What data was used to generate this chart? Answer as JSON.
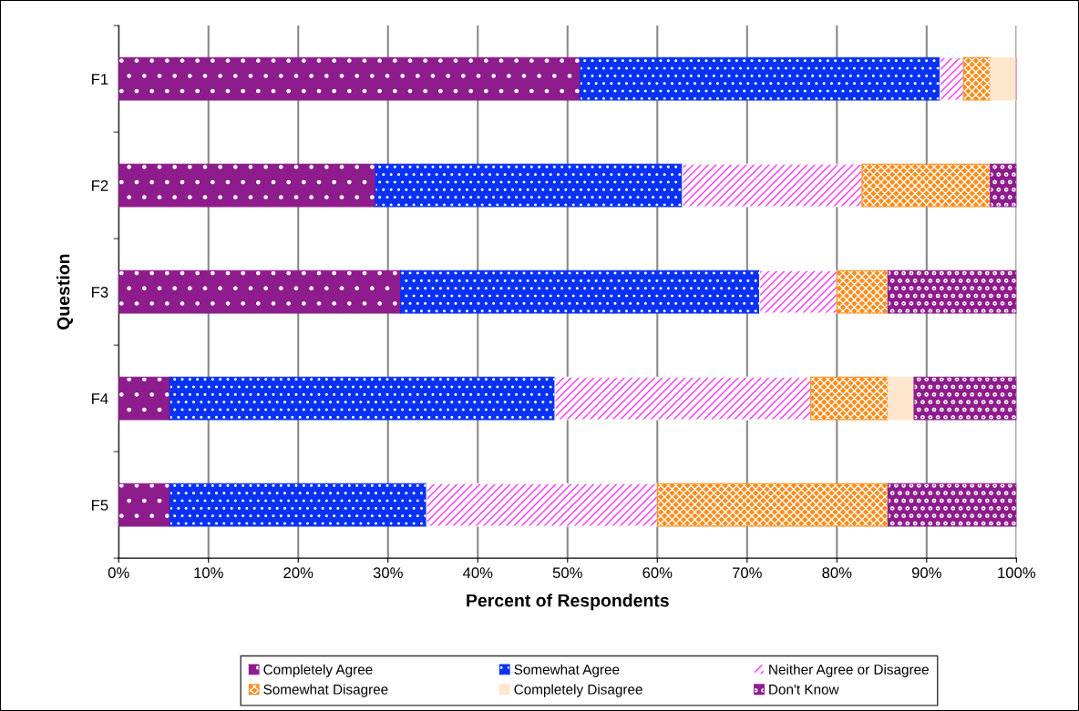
{
  "chart_data": {
    "type": "bar",
    "orientation": "horizontal",
    "stacked": true,
    "xlabel": "Percent of Respondents",
    "ylabel": "Question",
    "categories": [
      "F1",
      "F2",
      "F3",
      "F4",
      "F5"
    ],
    "series": [
      {
        "name": "Completely Agree",
        "color": "#8e1c8c",
        "values": [
          51.4,
          28.6,
          31.4,
          5.7,
          5.7
        ]
      },
      {
        "name": "Somewhat Agree",
        "color": "#0a32f5",
        "values": [
          40.1,
          34.2,
          40.0,
          42.9,
          28.6
        ]
      },
      {
        "name": "Neither Agree or Disagree",
        "color": "#ffffff",
        "values": [
          2.6,
          20.0,
          8.6,
          28.5,
          25.7
        ]
      },
      {
        "name": "Somewhat Disagree",
        "color": "#ff8c1a",
        "values": [
          3.0,
          14.3,
          5.7,
          8.6,
          25.7
        ]
      },
      {
        "name": "Completely Disagree",
        "color": "#ffe6cc",
        "values": [
          2.9,
          0,
          0,
          2.9,
          0
        ]
      },
      {
        "name": "Don't Know",
        "color": "#8e1c8c",
        "values": [
          0,
          2.9,
          14.3,
          11.4,
          14.3
        ]
      }
    ],
    "xlim": [
      0,
      100
    ],
    "xticks": [
      {
        "value": 0,
        "label": "0%"
      },
      {
        "value": 10,
        "label": "10%"
      },
      {
        "value": 20,
        "label": "20%"
      },
      {
        "value": 30,
        "label": "30%"
      },
      {
        "value": 40,
        "label": "40%"
      },
      {
        "value": 50,
        "label": "50%"
      },
      {
        "value": 60,
        "label": "60%"
      },
      {
        "value": 70,
        "label": "70%"
      },
      {
        "value": 80,
        "label": "80%"
      },
      {
        "value": 90,
        "label": "90%"
      },
      {
        "value": 100,
        "label": "100%"
      }
    ],
    "grid": "x",
    "legend": "bottom"
  }
}
